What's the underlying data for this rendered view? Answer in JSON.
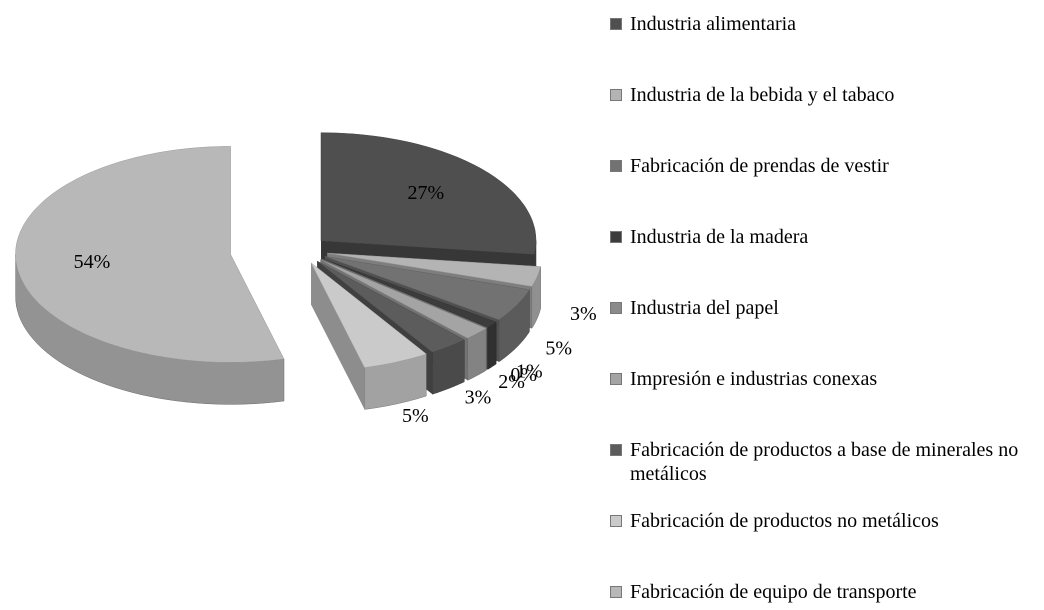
{
  "chart_data": {
    "type": "pie",
    "categories": [
      "Industria alimentaria",
      "Industria de la bebida y el tabaco",
      "Fabricación de prendas de vestir",
      "Industria de la madera",
      "Industria del papel",
      "Impresión e industrias conexas",
      "Fabricación de productos a base de minerales no metálicos",
      "Fabricación de productos no metálicos",
      "Fabricación de equipo de transporte"
    ],
    "values": [
      27,
      3,
      5,
      1,
      0,
      2,
      3,
      5,
      54
    ],
    "value_labels": [
      "27%",
      "3%",
      "5%",
      "1%",
      "0%",
      "2%",
      "3%",
      "5%",
      "54%"
    ],
    "colors": [
      "#4f4f4f",
      "#b4b4b4",
      "#727272",
      "#3c3c3c",
      "#8a8a8a",
      "#a4a4a4",
      "#5c5c5c",
      "#cacaca",
      "#b8b8b8"
    ],
    "legend": "right"
  }
}
